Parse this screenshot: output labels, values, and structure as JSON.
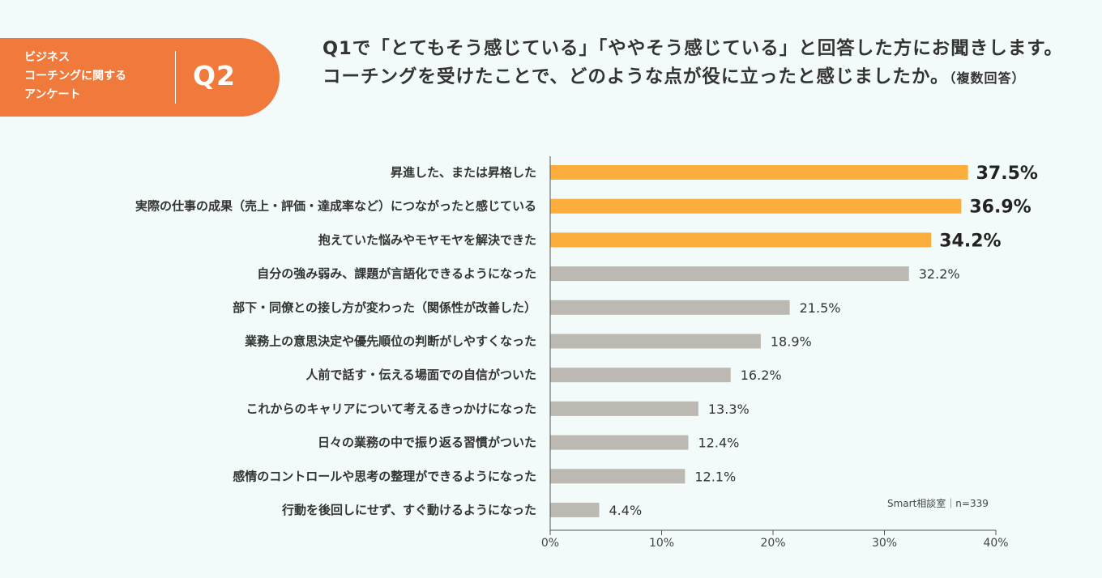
{
  "header": {
    "badge_text": "ビジネス\nコーチングに関する\nアンケート",
    "badge_number": "Q2",
    "question": "Q1で「とてもそう感じている」「ややそう感じている」と回答した方にお聞きします。コーチングを受けたことで、どのような点が役に立ったと感じましたか。",
    "question_sub": "（複数回答）"
  },
  "source": "Smart相談室｜n=339",
  "colors": {
    "highlight": "#fbae3c",
    "normal": "#bbb9b1",
    "badge": "#f07a3c",
    "background": "#f3fbfa"
  },
  "chart_data": {
    "type": "bar",
    "orientation": "horizontal",
    "title": "",
    "xlabel": "",
    "ylabel": "",
    "xlim": [
      0,
      40
    ],
    "xticks": [
      "0%",
      "10%",
      "20%",
      "30%",
      "40%"
    ],
    "grid": false,
    "categories": [
      "昇進した、または昇格した",
      "実際の仕事の成果（売上・評価・達成率など）につながったと感じている",
      "抱えていた悩みやモヤモヤを解決できた",
      "自分の強み弱み、課題が言語化できるようになった",
      "部下・同僚との接し方が変わった（関係性が改善した）",
      "業務上の意思決定や優先順位の判断がしやすくなった",
      "人前で話す・伝える場面での自信がついた",
      "これからのキャリアについて考えるきっかけになった",
      "日々の業務の中で振り返る習慣がついた",
      "感情のコントロールや思考の整理ができるようになった",
      "行動を後回しにせず、すぐ動けるようになった"
    ],
    "values": [
      37.5,
      36.9,
      34.2,
      32.2,
      21.5,
      18.9,
      16.2,
      13.3,
      12.4,
      12.1,
      4.4
    ],
    "value_labels": [
      "37.5%",
      "36.9%",
      "34.2%",
      "32.2%",
      "21.5%",
      "18.9%",
      "16.2%",
      "13.3%",
      "12.4%",
      "12.1%",
      "4.4%"
    ],
    "highlighted_top": 3
  }
}
